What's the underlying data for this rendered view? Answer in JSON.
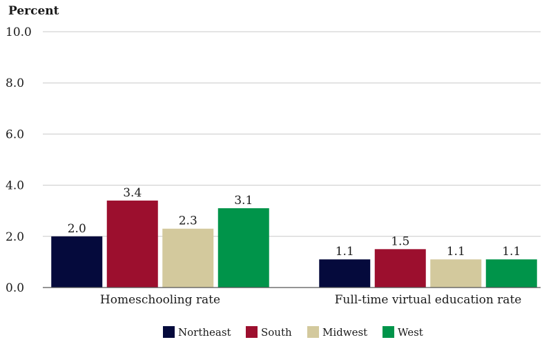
{
  "chart_data": {
    "type": "bar",
    "ylabel": "Percent",
    "xlabel": "",
    "ylim": [
      0,
      10
    ],
    "yticks": [
      "0.0",
      "2.0",
      "4.0",
      "6.0",
      "8.0",
      "10.0"
    ],
    "grid": true,
    "legend_position": "bottom",
    "categories": [
      "Homeschooling rate",
      "Full-time virtual education rate"
    ],
    "series": [
      {
        "name": "Northeast",
        "color": "#050a3c",
        "values": [
          2.0,
          1.1
        ],
        "labels": [
          "2.0",
          "1.1"
        ]
      },
      {
        "name": "South",
        "color": "#9c0f2e",
        "values": [
          3.4,
          1.5
        ],
        "labels": [
          "3.4",
          "1.5"
        ]
      },
      {
        "name": "Midwest",
        "color": "#d3c99d",
        "values": [
          2.3,
          1.1
        ],
        "labels": [
          "2.3",
          "1.1"
        ]
      },
      {
        "name": "West",
        "color": "#00944a",
        "values": [
          3.1,
          1.1
        ],
        "labels": [
          "3.1",
          "1.1"
        ]
      }
    ]
  }
}
